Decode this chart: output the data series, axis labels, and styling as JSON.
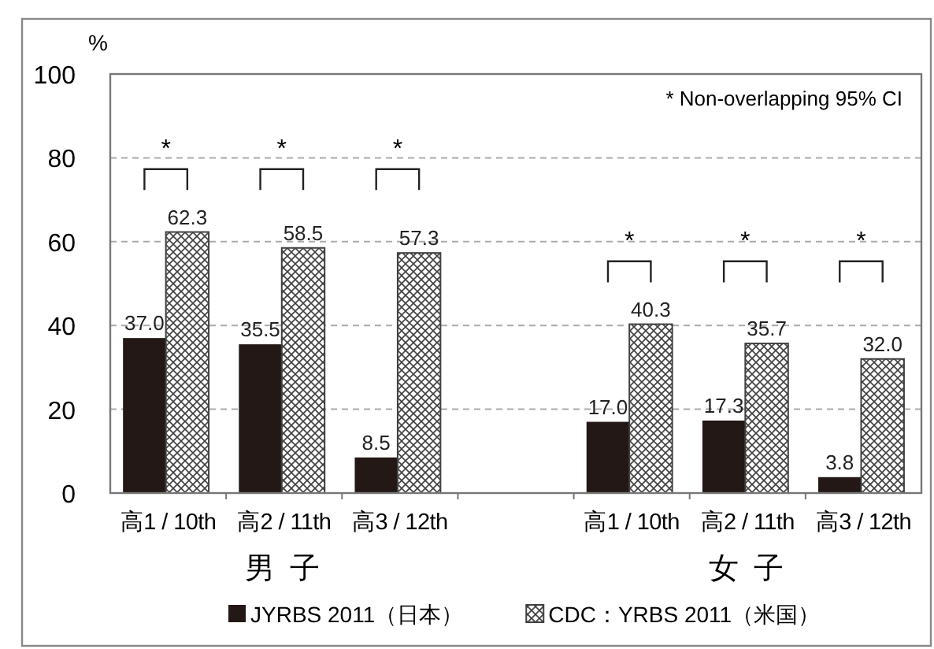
{
  "chart_data": {
    "type": "bar",
    "ylabel": "%",
    "categories": [
      "高1 / 10th",
      "高2 / 11th",
      "高3 / 12th",
      null,
      "高1 / 10th",
      "高2 / 11th",
      "高3 / 12th"
    ],
    "series": [
      {
        "name": "JYRBS 2011（日本）",
        "color": "#231815",
        "values": [
          37.0,
          35.5,
          8.5,
          null,
          17.0,
          17.3,
          3.8
        ],
        "value_labels": [
          "37.0",
          "35.5",
          "8.5",
          null,
          "17.0",
          "17.3",
          "3.8"
        ]
      },
      {
        "name": "CDC：YRBS 2011（米国）",
        "color": "#404040",
        "values": [
          62.3,
          58.5,
          57.3,
          null,
          40.3,
          35.7,
          32.0
        ],
        "value_labels": [
          "62.3",
          "58.5",
          "57.3",
          null,
          "40.3",
          "35.7",
          "32.0"
        ]
      }
    ],
    "ylim": [
      0,
      100
    ],
    "yticks": [
      0,
      20,
      40,
      60,
      80,
      100
    ],
    "grid": "y",
    "legend": "bottom",
    "annotations": [
      "* Non-overlapping 95% CI",
      "男 子",
      "女 子",
      "*",
      "*",
      "*",
      "*",
      "*",
      "*"
    ]
  }
}
